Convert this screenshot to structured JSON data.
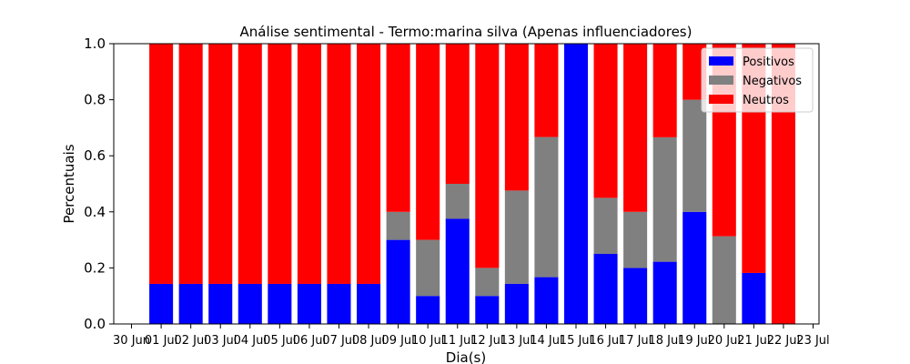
{
  "chart_data": {
    "type": "bar",
    "stacked": true,
    "title": "Análise sentimental - Termo:marina silva (Apenas influenciadores)",
    "xlabel": "Dia(s)",
    "ylabel": "Percentuais",
    "ylim": [
      0,
      1.0
    ],
    "yticks": [
      "0.0",
      "0.2",
      "0.4",
      "0.6",
      "0.8",
      "1.0"
    ],
    "yticks_values": [
      0,
      0.2,
      0.4,
      0.6,
      0.8,
      1.0
    ],
    "xticks": [
      "30 Jun",
      "01 Jul",
      "02 Jul",
      "03 Jul",
      "04 Jul",
      "05 Jul",
      "06 Jul",
      "07 Jul",
      "08 Jul",
      "09 Jul",
      "10 Jul",
      "11 Jul",
      "12 Jul",
      "13 Jul",
      "14 Jul",
      "15 Jul",
      "16 Jul",
      "17 Jul",
      "18 Jul",
      "19 Jul",
      "20 Jul",
      "21 Jul",
      "22 Jul",
      "23 Jul"
    ],
    "categories": [
      "01 Jul",
      "02 Jul",
      "03 Jul",
      "04 Jul",
      "05 Jul",
      "06 Jul",
      "07 Jul",
      "08 Jul",
      "09 Jul",
      "10 Jul",
      "11 Jul",
      "12 Jul",
      "13 Jul",
      "14 Jul",
      "15 Jul",
      "16 Jul",
      "17 Jul",
      "18 Jul",
      "19 Jul",
      "20 Jul",
      "21 Jul",
      "22 Jul"
    ],
    "series": [
      {
        "name": "Positivos",
        "color": "#0000ff",
        "values": [
          0.143,
          0.143,
          0.143,
          0.143,
          0.143,
          0.143,
          0.143,
          0.143,
          0.3,
          0.1,
          0.375,
          0.1,
          0.143,
          0.167,
          1.0,
          0.25,
          0.2,
          0.222,
          0.4,
          0.0,
          0.182,
          0.0
        ]
      },
      {
        "name": "Negativos",
        "color": "#808080",
        "values": [
          0.0,
          0.0,
          0.0,
          0.0,
          0.0,
          0.0,
          0.0,
          0.0,
          0.1,
          0.2,
          0.125,
          0.1,
          0.333,
          0.5,
          0.0,
          0.2,
          0.2,
          0.444,
          0.4,
          0.313,
          0.0,
          0.0
        ]
      },
      {
        "name": "Neutros",
        "color": "#ff0000",
        "values": [
          0.857,
          0.857,
          0.857,
          0.857,
          0.857,
          0.857,
          0.857,
          0.857,
          0.6,
          0.7,
          0.5,
          0.8,
          0.524,
          0.333,
          0.0,
          0.55,
          0.6,
          0.334,
          0.2,
          0.687,
          0.818,
          1.0
        ]
      }
    ],
    "legend": "top-right",
    "grid": false
  }
}
